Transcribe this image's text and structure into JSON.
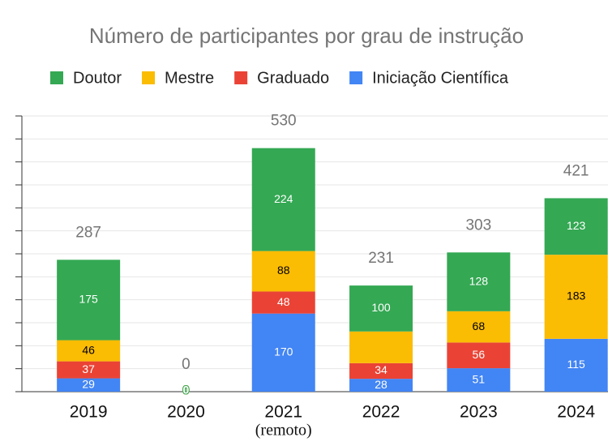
{
  "chart_data": {
    "type": "stacked-bar",
    "title": "Número de participantes por grau de instrução",
    "categories": [
      "2019",
      "2020",
      "2021",
      "2022",
      "2023",
      "2024"
    ],
    "category_notes": [
      null,
      null,
      "(remoto)",
      null,
      null,
      null
    ],
    "series": [
      {
        "name": "Doutor",
        "color": "#34a853",
        "label_color": "#ffffff",
        "values": [
          175,
          0,
          224,
          100,
          128,
          123
        ]
      },
      {
        "name": "Mestre",
        "color": "#fbbc04",
        "label_color": "#000000",
        "values": [
          46,
          0,
          88,
          69,
          68,
          183
        ],
        "value_labels": [
          "46",
          "0",
          "88",
          null,
          "68",
          "183"
        ]
      },
      {
        "name": "Graduado",
        "color": "#ea4335",
        "label_color": "#ffffff",
        "values": [
          37,
          0,
          48,
          34,
          56,
          0
        ],
        "value_labels": [
          "37",
          "0",
          "48",
          "34",
          "56",
          null
        ]
      },
      {
        "name": "Iniciação Científica",
        "color": "#4285f4",
        "label_color": "#ffffff",
        "values": [
          29,
          0,
          170,
          28,
          51,
          115
        ]
      }
    ],
    "totals": [
      287,
      0,
      530,
      231,
      303,
      421
    ],
    "ylim": [
      0,
      600
    ],
    "yticks": [
      0,
      50,
      100,
      150,
      200,
      250,
      300,
      350,
      400,
      450,
      500,
      550,
      600
    ],
    "grid": true,
    "legend": "top"
  }
}
